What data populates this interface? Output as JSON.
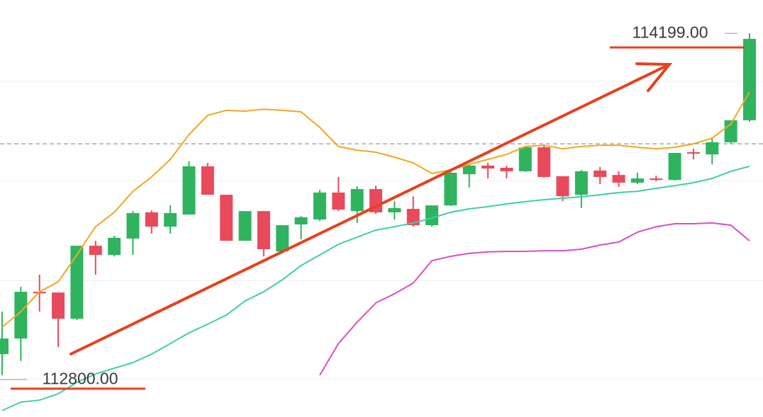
{
  "chart_data": {
    "type": "candlestick",
    "ylim": [
      112649,
      114334
    ],
    "up_color": "#2fb35f",
    "down_color": "#e84a5c",
    "gridlines": [
      114005,
      113604,
      113200,
      112803
    ],
    "reference_line": 113753,
    "open": [
      112903,
      112966,
      113155,
      113152,
      113046,
      113341,
      113304,
      113370,
      113476,
      113418,
      113467,
      113662,
      113547,
      113361,
      113481,
      113318,
      113427,
      113447,
      113556,
      113481,
      113570,
      113476,
      113490,
      113424,
      113504,
      113630,
      113665,
      113656,
      113642,
      113739,
      113622,
      113547,
      113645,
      113627,
      113596,
      113613,
      113607,
      113719,
      113710,
      113759,
      113848
    ],
    "high": [
      113075,
      113175,
      113224,
      113152,
      113341,
      113361,
      113381,
      113481,
      113484,
      113504,
      113682,
      113676,
      113547,
      113481,
      113481,
      113424,
      113461,
      113567,
      113619,
      113582,
      113584,
      113521,
      113541,
      113504,
      113647,
      113670,
      113676,
      113665,
      113745,
      113750,
      113622,
      113647,
      113659,
      113642,
      113636,
      113624,
      113716,
      113733,
      113773,
      113848,
      114199
    ],
    "low": [
      112818,
      112875,
      113075,
      112932,
      113041,
      113224,
      113298,
      113304,
      113390,
      113390,
      113467,
      113547,
      113361,
      113361,
      113298,
      113310,
      113367,
      113441,
      113481,
      113433,
      113470,
      113447,
      113418,
      113418,
      113501,
      113576,
      113613,
      113613,
      113639,
      113616,
      113521,
      113493,
      113590,
      113579,
      113590,
      113602,
      113604,
      113690,
      113670,
      113753,
      113842
    ],
    "close": [
      112966,
      113155,
      113149,
      113046,
      113341,
      113304,
      113373,
      113473,
      113418,
      113473,
      113662,
      113547,
      113361,
      113481,
      113327,
      113424,
      113456,
      113556,
      113487,
      113570,
      113476,
      113493,
      113424,
      113504,
      113636,
      113665,
      113653,
      113642,
      113739,
      113619,
      113541,
      113642,
      113619,
      113596,
      113613,
      113607,
      113716,
      113713,
      113759,
      113848,
      114177
    ],
    "lines": [
      {
        "color": "#f2a81d",
        "values": [
          113012,
          113075,
          113155,
          113195,
          113304,
          113418,
          113476,
          113561,
          113619,
          113690,
          113790,
          113868,
          113888,
          113885,
          113893,
          113888,
          113882,
          113819,
          113742,
          113727,
          113719,
          113699,
          113676,
          113633,
          113647,
          113670,
          113690,
          113710,
          113742,
          113747,
          113733,
          113742,
          113747,
          113747,
          113739,
          113733,
          113739,
          113753,
          113776,
          113833,
          113962
        ]
      },
      {
        "color": "#3fcfa6",
        "values": [
          112675,
          112709,
          112717,
          112743,
          112789,
          112823,
          112846,
          112869,
          112903,
          112946,
          112989,
          113024,
          113061,
          113118,
          113155,
          113204,
          113261,
          113304,
          113347,
          113376,
          113404,
          113418,
          113433,
          113453,
          113476,
          113490,
          113499,
          113510,
          113519,
          113527,
          113533,
          113539,
          113547,
          113556,
          113561,
          113573,
          113584,
          113596,
          113613,
          113642,
          113662
        ]
      },
      {
        "color": "#d84fc6",
        "values": [
          null,
          null,
          null,
          null,
          null,
          null,
          null,
          null,
          null,
          null,
          null,
          null,
          null,
          null,
          null,
          null,
          null,
          112818,
          112946,
          113032,
          113110,
          113147,
          113190,
          113281,
          113298,
          113310,
          113316,
          113318,
          113318,
          113321,
          113321,
          113327,
          113344,
          113356,
          113396,
          113418,
          113430,
          113430,
          113433,
          113424,
          113361
        ]
      }
    ],
    "annotations": [
      {
        "value": 114199,
        "label": "114199.00"
      },
      {
        "value": 112800,
        "label": "112800.00"
      }
    ]
  }
}
